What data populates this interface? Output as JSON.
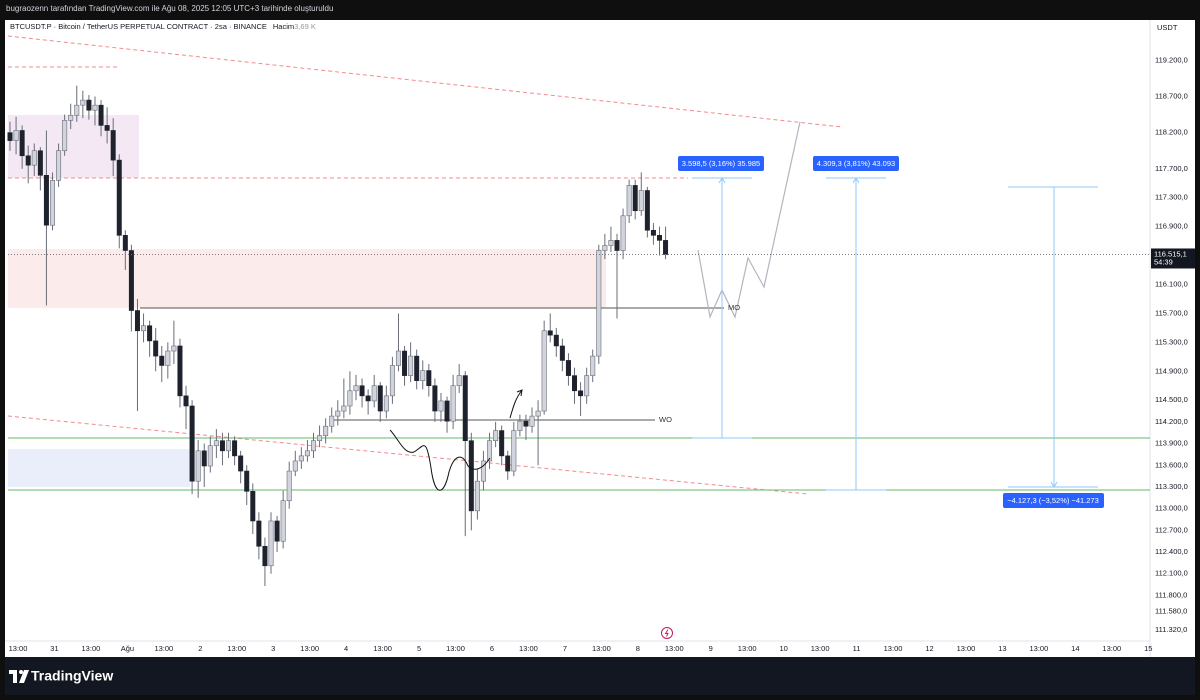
{
  "header": {
    "text": "bugraozenn tarafından TradingView.com ile Ağu 08, 2025 12:05 UTC+3 tarihinde oluşturuldu"
  },
  "footer": {
    "brand": "TradingView"
  },
  "chart_data": {
    "type": "candlestick",
    "legend": {
      "title": "BTCUSDT.P · Bitcoin / TetherUS PERPETUAL CONTRACT · 2sa · BINANCE",
      "volume_label": "Hacim",
      "volume": "3,69 K"
    },
    "currency": "USDT",
    "up_color": "#d1d4dc",
    "down_color": "#1e222d",
    "wick_color": "#6a6d78",
    "grid": false,
    "ylim": [
      111170,
      119730
    ],
    "yticks": [
      {
        "value": 119200,
        "label": "119.200,0"
      },
      {
        "value": 118700,
        "label": "118.700,0"
      },
      {
        "value": 118200,
        "label": "118.200,0"
      },
      {
        "value": 117700,
        "label": "117.700,0"
      },
      {
        "value": 117300,
        "label": "117.300,0"
      },
      {
        "value": 116900,
        "label": "116.900,0"
      },
      {
        "value": 116100,
        "label": "116.100,0"
      },
      {
        "value": 115700,
        "label": "115.700,0"
      },
      {
        "value": 115300,
        "label": "115.300,0"
      },
      {
        "value": 114900,
        "label": "114.900,0"
      },
      {
        "value": 114500,
        "label": "114.500,0"
      },
      {
        "value": 114200,
        "label": "114.200,0"
      },
      {
        "value": 113900,
        "label": "113.900,0"
      },
      {
        "value": 113600,
        "label": "113.600,0"
      },
      {
        "value": 113300,
        "label": "113.300,0"
      },
      {
        "value": 113000,
        "label": "113.000,0"
      },
      {
        "value": 112700,
        "label": "112.700,0"
      },
      {
        "value": 112400,
        "label": "112.400,0"
      },
      {
        "value": 112100,
        "label": "112.100,0"
      },
      {
        "value": 111800,
        "label": "111.800,0"
      },
      {
        "value": 111580,
        "label": "111.580,0"
      },
      {
        "value": 111320,
        "label": "111.320,0"
      }
    ],
    "last_price": {
      "value": 116515.1,
      "label": "116.515,1"
    },
    "countdown": "54:39",
    "time_labels": [
      "13:00",
      "31",
      "13:00",
      "Ağu",
      "13:00",
      "2",
      "13:00",
      "3",
      "13:00",
      "4",
      "13:00",
      "5",
      "13:00",
      "6",
      "13:00",
      "7",
      "13:00",
      "8",
      "13:00",
      "9",
      "13:00",
      "10",
      "13:00",
      "11",
      "13:00",
      "12",
      "13:00",
      "13",
      "13:00",
      "14",
      "13:00",
      "15"
    ],
    "annotations": [
      "3.598,5 (3,16%) 35.985",
      "4.309,3 (3,81%) 43.093",
      "−4.127,3 (−3,52%) −41.273",
      "MO",
      "WO"
    ],
    "ohlc": [
      [
        118200,
        118350,
        117950,
        118090
      ],
      [
        118090,
        118420,
        117900,
        118230
      ],
      [
        118230,
        118300,
        117700,
        117880
      ],
      [
        117880,
        118020,
        117500,
        117750
      ],
      [
        117750,
        118050,
        117600,
        117950
      ],
      [
        117950,
        118000,
        117400,
        117610
      ],
      [
        117610,
        118230,
        115810,
        116920
      ],
      [
        116920,
        117650,
        116850,
        117540
      ],
      [
        117540,
        118050,
        117450,
        117950
      ],
      [
        117950,
        118450,
        117880,
        118370
      ],
      [
        118370,
        118600,
        118250,
        118440
      ],
      [
        118440,
        118850,
        118350,
        118580
      ],
      [
        118580,
        118780,
        118400,
        118650
      ],
      [
        118650,
        118720,
        118380,
        118510
      ],
      [
        118510,
        118700,
        118300,
        118580
      ],
      [
        118580,
        118650,
        118150,
        118300
      ],
      [
        118300,
        118550,
        118050,
        118230
      ],
      [
        118230,
        118400,
        117600,
        117820
      ],
      [
        117820,
        117900,
        116600,
        116780
      ],
      [
        116780,
        116850,
        116300,
        116570
      ],
      [
        116570,
        116650,
        115450,
        115740
      ],
      [
        115740,
        115900,
        114350,
        115460
      ],
      [
        115460,
        115700,
        115300,
        115530
      ],
      [
        115530,
        115600,
        115100,
        115320
      ],
      [
        115320,
        115500,
        114900,
        115110
      ],
      [
        115110,
        115250,
        114750,
        114980
      ],
      [
        114980,
        115300,
        114800,
        115180
      ],
      [
        115180,
        115600,
        115000,
        115250
      ],
      [
        115250,
        115350,
        114400,
        114560
      ],
      [
        114560,
        114700,
        114100,
        114420
      ],
      [
        114420,
        114500,
        113200,
        113380
      ],
      [
        113380,
        113950,
        113150,
        113800
      ],
      [
        113800,
        113900,
        113300,
        113590
      ],
      [
        113590,
        114000,
        113500,
        113870
      ],
      [
        113870,
        114100,
        113700,
        113940
      ],
      [
        113940,
        114050,
        113600,
        113800
      ],
      [
        113800,
        114050,
        113700,
        113940
      ],
      [
        113940,
        114000,
        113600,
        113730
      ],
      [
        113730,
        113800,
        113350,
        113520
      ],
      [
        113520,
        113600,
        113050,
        113240
      ],
      [
        113240,
        113350,
        112650,
        112830
      ],
      [
        112830,
        112950,
        112300,
        112480
      ],
      [
        112480,
        112600,
        111930,
        112210
      ],
      [
        112210,
        112950,
        112100,
        112830
      ],
      [
        112830,
        112900,
        112400,
        112550
      ],
      [
        112550,
        113250,
        112450,
        113110
      ],
      [
        113110,
        113650,
        113000,
        113520
      ],
      [
        113520,
        113800,
        113450,
        113660
      ],
      [
        113660,
        113850,
        113550,
        113730
      ],
      [
        113730,
        113950,
        113650,
        113800
      ],
      [
        113800,
        114050,
        113700,
        113940
      ],
      [
        113940,
        114150,
        113850,
        114010
      ],
      [
        114010,
        114250,
        113900,
        114140
      ],
      [
        114140,
        114400,
        114050,
        114280
      ],
      [
        114280,
        114500,
        114150,
        114350
      ],
      [
        114350,
        114800,
        114250,
        114420
      ],
      [
        114420,
        114900,
        114300,
        114630
      ],
      [
        114630,
        114850,
        114500,
        114700
      ],
      [
        114700,
        114800,
        114400,
        114560
      ],
      [
        114560,
        114650,
        114300,
        114490
      ],
      [
        114490,
        114850,
        114400,
        114700
      ],
      [
        114700,
        114750,
        114200,
        114350
      ],
      [
        114350,
        114700,
        114250,
        114560
      ],
      [
        114560,
        115100,
        114450,
        114980
      ],
      [
        114980,
        115700,
        114900,
        115180
      ],
      [
        115180,
        115250,
        114700,
        114840
      ],
      [
        114840,
        115300,
        114750,
        115110
      ],
      [
        115110,
        115200,
        114650,
        114770
      ],
      [
        114770,
        115050,
        114650,
        114910
      ],
      [
        114910,
        115000,
        114550,
        114700
      ],
      [
        114700,
        114800,
        114200,
        114350
      ],
      [
        114350,
        114600,
        114200,
        114490
      ],
      [
        114490,
        114550,
        114050,
        114210
      ],
      [
        114210,
        114850,
        114100,
        114700
      ],
      [
        114700,
        115000,
        114600,
        114840
      ],
      [
        114840,
        114900,
        112620,
        113940
      ],
      [
        113940,
        114050,
        112700,
        112970
      ],
      [
        112970,
        113550,
        112850,
        113380
      ],
      [
        113380,
        113800,
        113250,
        113660
      ],
      [
        113660,
        114050,
        113550,
        113940
      ],
      [
        113940,
        114200,
        113850,
        114080
      ],
      [
        114080,
        114150,
        113600,
        113730
      ],
      [
        113730,
        113800,
        113400,
        113520
      ],
      [
        113520,
        114200,
        113450,
        114080
      ],
      [
        114080,
        114300,
        114000,
        114210
      ],
      [
        114210,
        114300,
        113950,
        114140
      ],
      [
        114140,
        114400,
        114050,
        114280
      ],
      [
        114280,
        114500,
        113600,
        114350
      ],
      [
        114350,
        115600,
        114300,
        115460
      ],
      [
        115460,
        115700,
        115300,
        115400
      ],
      [
        115400,
        115500,
        115100,
        115250
      ],
      [
        115250,
        115350,
        114900,
        115050
      ],
      [
        115050,
        115150,
        114700,
        114840
      ],
      [
        114840,
        114950,
        114450,
        114630
      ],
      [
        114630,
        114750,
        114280,
        114560
      ],
      [
        114560,
        114950,
        114450,
        114840
      ],
      [
        114840,
        115200,
        114750,
        115110
      ],
      [
        115110,
        116650,
        115000,
        116570
      ],
      [
        116570,
        116800,
        116450,
        116640
      ],
      [
        116640,
        116900,
        116550,
        116710
      ],
      [
        116710,
        116800,
        115630,
        116570
      ],
      [
        116570,
        117150,
        116450,
        117050
      ],
      [
        117050,
        117550,
        116950,
        117470
      ],
      [
        117470,
        117550,
        117000,
        117120
      ],
      [
        117120,
        117650,
        117050,
        117400
      ],
      [
        117400,
        117450,
        116750,
        116850
      ],
      [
        116850,
        116950,
        116650,
        116780
      ],
      [
        116780,
        116900,
        116500,
        116710
      ],
      [
        116710,
        116900,
        116450,
        116515.1
      ]
    ]
  }
}
